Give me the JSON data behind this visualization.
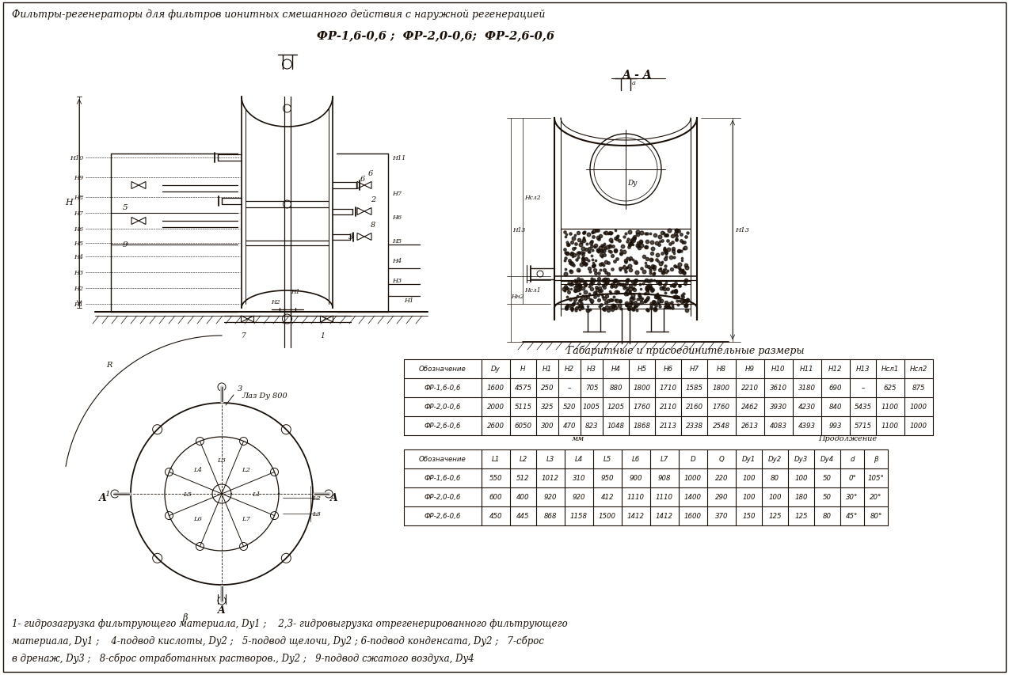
{
  "title_line1": "Фильтры-регенераторы для фильтров ионитных смешанного действия с наружной регенерацией",
  "title_line2": "ФР-1,6-0,6 ;  ФР-2,0-0,6;  ФР-2,6-0,6",
  "section_label": "А - А",
  "table1_title": "Габаритные и присоединительные размеры",
  "table1_headers": [
    "Обозначение",
    "Dy",
    "H",
    "H1",
    "H2",
    "H3",
    "H4",
    "H5",
    "H6",
    "H7",
    "H8",
    "H9",
    "H10",
    "H11",
    "H12",
    "H13",
    "Hсл1",
    "Hсл2"
  ],
  "table1_rows": [
    [
      "ФР-1,6-0,6",
      "1600",
      "4575",
      "250",
      "–",
      "705",
      "880",
      "1800",
      "1710",
      "1585",
      "1800",
      "2210",
      "3610",
      "3180",
      "690",
      "–",
      "625",
      "875"
    ],
    [
      "ФР-2,0-0,6",
      "2000",
      "5115",
      "325",
      "520",
      "1005",
      "1205",
      "1760",
      "2110",
      "2160",
      "1760",
      "2462",
      "3930",
      "4230",
      "840",
      "5435",
      "1100",
      "1000"
    ],
    [
      "ФР-2,6-0,6",
      "2600",
      "6050",
      "300",
      "470",
      "823",
      "1048",
      "1868",
      "2113",
      "2338",
      "2548",
      "2613",
      "4083",
      "4393",
      "993",
      "5715",
      "1100",
      "1000"
    ]
  ],
  "table2_note1": "мм",
  "table2_note2": "Продолжение",
  "table2_headers": [
    "Обозначение",
    "L1",
    "L2",
    "L3",
    "L4",
    "L5",
    "L6",
    "L7",
    "D",
    "Q",
    "Dy1",
    "Dy2",
    "Dy3",
    "Dy4",
    "d",
    "β"
  ],
  "table2_rows": [
    [
      "ФР-1,6-0,6",
      "550",
      "512",
      "1012",
      "310",
      "950",
      "900",
      "908",
      "1000",
      "220",
      "100",
      "80",
      "100",
      "50",
      "0°",
      "105°"
    ],
    [
      "ФР-2,0-0,6",
      "600",
      "400",
      "920",
      "920",
      "412",
      "1110",
      "1110",
      "1400",
      "290",
      "100",
      "100",
      "180",
      "50",
      "30°",
      "20°"
    ],
    [
      "ФР-2,6-0,6",
      "450",
      "445",
      "868",
      "1158",
      "1500",
      "1412",
      "1412",
      "1600",
      "370",
      "150",
      "125",
      "125",
      "80",
      "45°",
      "80°"
    ]
  ],
  "footer_line1": "1- гидрозагрузка фильтрующего материала, Dy1 ;    2,3- гидровыгрузка отрегенерированного фильтрующего",
  "footer_line2": "материала, Dy1 ;    4-подвод кислоты, Dy2 ;   5-подвод щелочи, Dy2 ; 6-подвод конденсата, Dy2 ;   7-сброс",
  "footer_line3": "в дренаж, Dy3 ;   8-сброс отработанных растворов., Dy2 ;   9-подвод сжатого воздуха, Dy4",
  "bg_color": "#ffffff",
  "line_color": "#1a1008"
}
